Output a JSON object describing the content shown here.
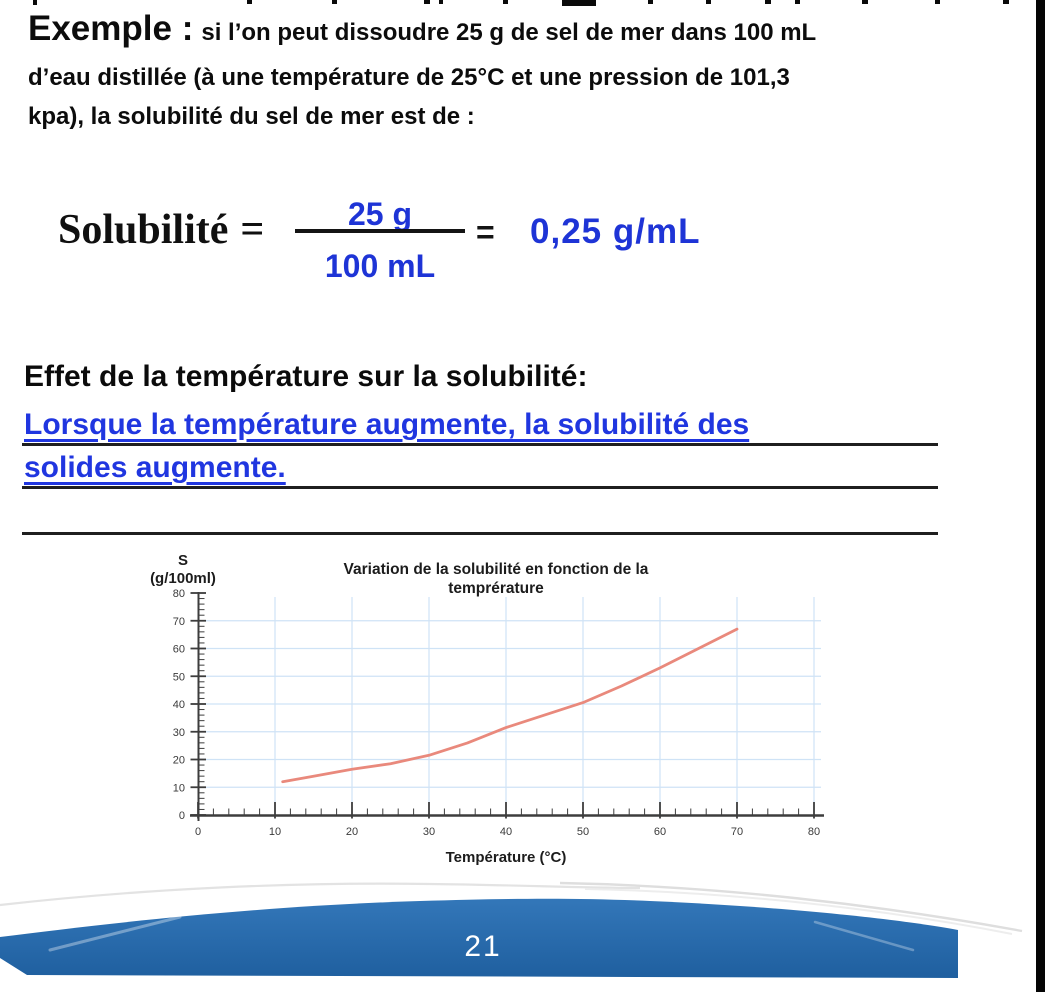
{
  "intro": {
    "heading": "Exemple :",
    "line1": "si l’on peut dissoudre 25 g de sel de mer dans 100 mL",
    "line2": "d’eau distillée (à une température de 25°C et une pression de 101,3",
    "line3": "kpa), la solubilité du sel de mer est de :"
  },
  "formula": {
    "lhs": "Solubilité",
    "equals": "=",
    "numerator": "25 g",
    "denominator": "100 mL",
    "equals2": "=",
    "result": "0,25 g/mL"
  },
  "effect": {
    "heading": "Effet de la température sur la solubilité:",
    "answer_line1": "Lorsque la température augmente, la solubilité des",
    "answer_line2": "solides augmente."
  },
  "chart_data": {
    "type": "line",
    "title": "Variation de la solubilité en fonction de la temprérature",
    "xlabel": "Température (°C)",
    "ylabel_top": "S",
    "ylabel_bottom": "(g/100ml)",
    "xlim": [
      0,
      80
    ],
    "ylim": [
      0,
      80
    ],
    "x_ticks": [
      0,
      10,
      20,
      30,
      40,
      50,
      60,
      70,
      80
    ],
    "y_ticks": [
      0,
      10,
      20,
      30,
      40,
      50,
      60,
      70,
      80
    ],
    "minor_tick_step": 2,
    "grid": true,
    "grid_color": "#cfe3f6",
    "legend_position": "none",
    "series": [
      {
        "color": "#e9897c",
        "points": [
          [
            11,
            12
          ],
          [
            15,
            14
          ],
          [
            20,
            16.5
          ],
          [
            25,
            18.5
          ],
          [
            30,
            21.5
          ],
          [
            35,
            26
          ],
          [
            40,
            31.5
          ],
          [
            45,
            36
          ],
          [
            50,
            40.5
          ],
          [
            55,
            46.5
          ],
          [
            60,
            53
          ],
          [
            65,
            60
          ],
          [
            70,
            67
          ]
        ]
      }
    ]
  },
  "footer": {
    "page_number": "21"
  },
  "colors": {
    "accent_blue_text": "#1e34d6",
    "answer_blue_text": "#2036e0",
    "footer_blue_top": "#3377b9",
    "footer_blue_bottom": "#1f5f9f",
    "curve_salmon": "#e9897c",
    "grid_light_blue": "#cfe3f6"
  }
}
